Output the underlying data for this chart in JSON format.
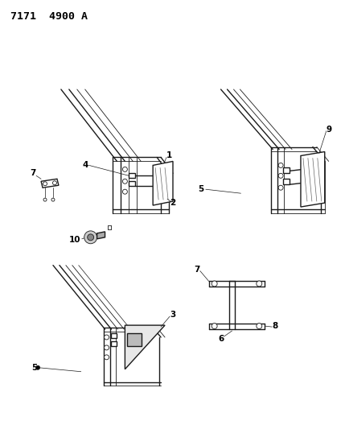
{
  "title": "7171  4900 A",
  "bg_color": "#f5f5f0",
  "line_color": "#1a1a1a",
  "label_fontsize": 7.5,
  "fig_width": 4.29,
  "fig_height": 5.33,
  "dpi": 100
}
